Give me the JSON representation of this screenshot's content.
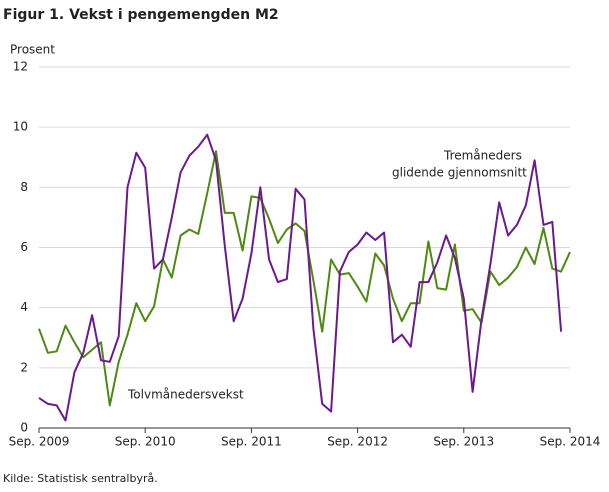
{
  "chart_data": {
    "type": "line",
    "title": "Figur 1. Vekst i pengemengden M2",
    "y_label": "Prosent",
    "source": "Kilde: Statistisk sentralbyrå.",
    "annotations": [
      "Tremåneders",
      "glidende gjennomsnitt",
      "Tolvmånedersvekst"
    ],
    "categories": [
      "Sep. 2009",
      null,
      null,
      null,
      null,
      null,
      null,
      null,
      null,
      null,
      null,
      null,
      "Sep. 2010",
      null,
      null,
      null,
      null,
      null,
      null,
      null,
      null,
      null,
      null,
      null,
      "Sep. 2011",
      null,
      null,
      null,
      null,
      null,
      null,
      null,
      null,
      null,
      null,
      null,
      "Sep. 2012",
      null,
      null,
      null,
      null,
      null,
      null,
      null,
      null,
      null,
      null,
      null,
      "Sep. 2013",
      null,
      null,
      null,
      null,
      null,
      null,
      null,
      null,
      null,
      null,
      null,
      "Sep. 2014"
    ],
    "series": [
      {
        "name": "Tolvmånedersvekst",
        "color": "#4e8a12",
        "values": [
          3.3,
          2.5,
          2.55,
          3.4,
          2.85,
          2.35,
          2.6,
          2.85,
          0.75,
          2.2,
          3.1,
          4.15,
          3.55,
          4.05,
          5.6,
          5.0,
          6.4,
          6.6,
          6.45,
          7.8,
          9.2,
          7.15,
          7.15,
          5.9,
          7.7,
          7.65,
          6.95,
          6.15,
          6.6,
          6.8,
          6.55,
          4.9,
          3.2,
          5.6,
          5.1,
          5.15,
          4.7,
          4.2,
          5.8,
          5.4,
          4.3,
          3.55,
          4.15,
          4.15,
          6.2,
          4.65,
          4.6,
          6.1,
          3.9,
          3.95,
          3.5,
          5.2,
          4.75,
          5.0,
          5.35,
          6.0,
          5.45,
          6.65,
          5.3,
          5.2,
          5.85
        ]
      },
      {
        "name": "Tremåneders glidende gjennomsnitt",
        "color": "#6a1a8c",
        "values": [
          1.0,
          0.8,
          0.75,
          0.25,
          1.85,
          2.5,
          3.75,
          2.25,
          2.2,
          3.05,
          8.0,
          9.15,
          8.65,
          5.3,
          5.6,
          7.0,
          8.5,
          9.05,
          9.35,
          9.75,
          8.9,
          6.05,
          3.55,
          4.3,
          5.8,
          8.0,
          5.6,
          4.85,
          4.95,
          7.95,
          7.6,
          3.3,
          0.8,
          0.55,
          5.2,
          5.85,
          6.1,
          6.5,
          6.25,
          6.5,
          2.85,
          3.1,
          2.7,
          4.85,
          4.85,
          5.5,
          6.4,
          5.65,
          4.3,
          1.2,
          3.6,
          5.45,
          7.5,
          6.4,
          6.75,
          7.4,
          8.9,
          6.75,
          6.85,
          3.2,
          null
        ]
      }
    ],
    "ylim": [
      0,
      12
    ],
    "yticks": [
      0,
      2,
      4,
      6,
      8,
      10,
      12
    ],
    "grid": true
  }
}
